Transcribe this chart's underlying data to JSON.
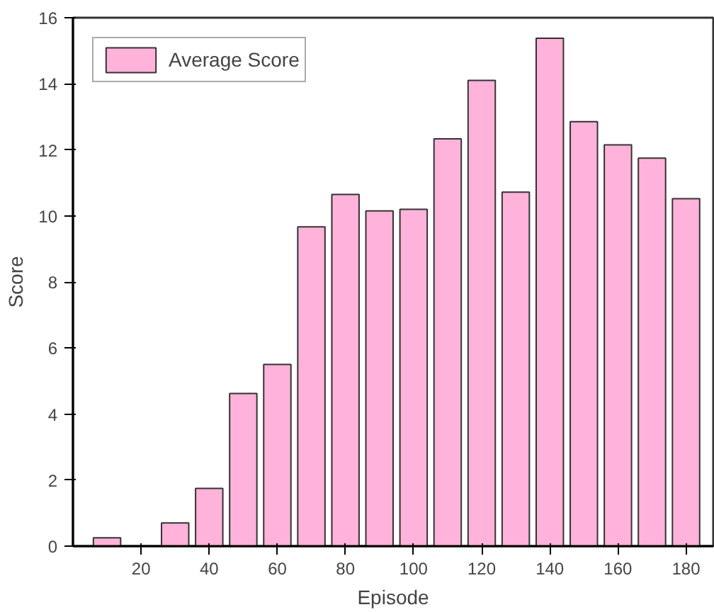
{
  "chart_data": {
    "type": "bar",
    "xlabel": "Episode",
    "ylabel": "Score",
    "x": [
      10,
      20,
      30,
      40,
      50,
      60,
      70,
      80,
      90,
      100,
      110,
      120,
      130,
      140,
      150,
      160,
      170,
      180
    ],
    "series": [
      {
        "name": "Average Score",
        "color": "#ffb3da",
        "values": [
          0.25,
          null,
          0.7,
          1.75,
          4.62,
          5.5,
          9.67,
          10.65,
          10.15,
          10.2,
          12.33,
          14.1,
          10.72,
          15.38,
          12.85,
          12.15,
          11.75,
          10.52
        ]
      }
    ],
    "xlim": [
      0,
      188
    ],
    "xticks": [
      20,
      40,
      60,
      80,
      100,
      120,
      140,
      160,
      180
    ],
    "ylim": [
      0,
      16
    ],
    "yticks": [
      0,
      2,
      4,
      6,
      8,
      10,
      12,
      14,
      16
    ],
    "grid": false,
    "legend": "top left"
  }
}
